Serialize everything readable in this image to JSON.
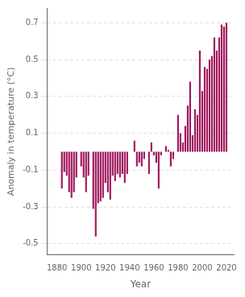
{
  "chart_data": {
    "type": "bar",
    "xlabel": "Year",
    "ylabel": "Anomaly in temperature (°C)",
    "x": [
      1884,
      1886,
      1888,
      1890,
      1892,
      1894,
      1896,
      1900,
      1902,
      1904,
      1906,
      1910,
      1912,
      1914,
      1916,
      1918,
      1920,
      1922,
      1924,
      1926,
      1928,
      1930,
      1932,
      1934,
      1936,
      1938,
      1944,
      1946,
      1948,
      1950,
      1952,
      1956,
      1958,
      1960,
      1962,
      1964,
      1966,
      1970,
      1972,
      1974,
      1976,
      1980,
      1982,
      1984,
      1986,
      1988,
      1990,
      1992,
      1994,
      1996,
      1998,
      2000,
      2002,
      2004,
      2006,
      2008,
      2010,
      2012,
      2014,
      2016,
      2018,
      2020
    ],
    "values": [
      -0.2,
      -0.11,
      -0.13,
      -0.22,
      -0.25,
      -0.22,
      -0.14,
      -0.08,
      -0.14,
      -0.22,
      -0.13,
      -0.31,
      -0.46,
      -0.28,
      -0.27,
      -0.25,
      -0.17,
      -0.22,
      -0.26,
      -0.13,
      -0.16,
      -0.12,
      -0.14,
      -0.12,
      -0.17,
      -0.12,
      0.06,
      -0.08,
      -0.06,
      -0.08,
      -0.04,
      -0.12,
      0.05,
      -0.02,
      -0.06,
      -0.2,
      -0.02,
      0.03,
      0.01,
      -0.08,
      -0.04,
      0.2,
      0.1,
      0.05,
      0.14,
      0.25,
      0.38,
      0.09,
      0.23,
      0.2,
      0.55,
      0.33,
      0.46,
      0.45,
      0.5,
      0.52,
      0.62,
      0.55,
      0.62,
      0.69,
      0.68,
      0.7
    ],
    "color": "#A0185E",
    "xlim": [
      1872,
      2026
    ],
    "ylim": [
      -0.56,
      0.78
    ],
    "xticks": [
      1880,
      1900,
      1920,
      1940,
      1960,
      1980,
      2000,
      2020
    ],
    "yticks": [
      -0.5,
      -0.3,
      -0.1,
      0.1,
      0.3,
      0.5,
      0.7
    ],
    "grid": true
  }
}
